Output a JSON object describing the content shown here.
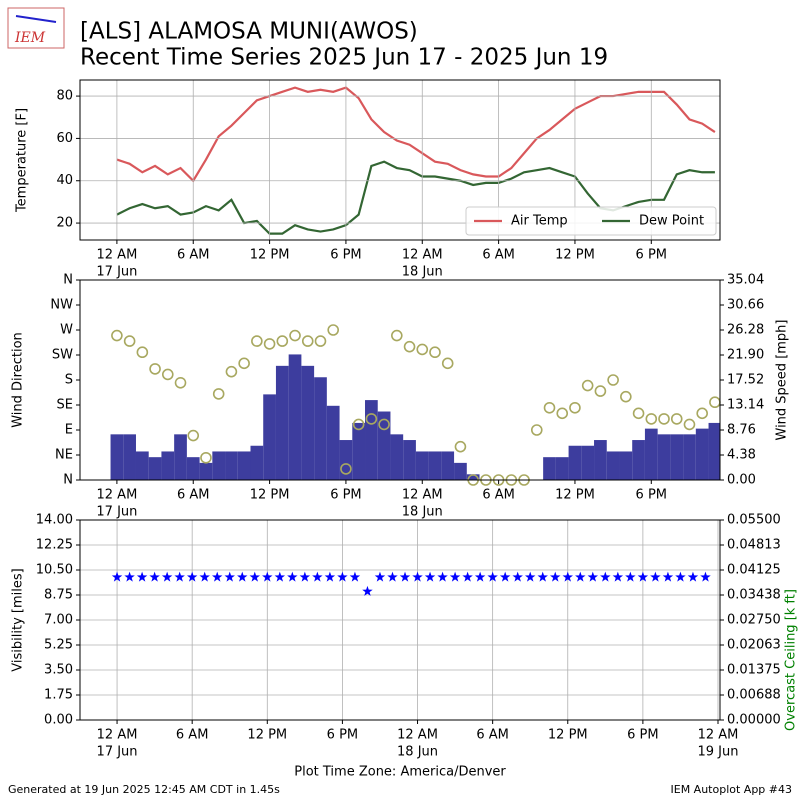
{
  "title": "[ALS] ALAMOSA MUNI(AWOS)",
  "subtitle": "Recent Time Series 2025 Jun 17 - 2025 Jun 19",
  "logo": "IEM",
  "footer_left": "Generated at 19 Jun 2025 12:45 AM CDT in 1.45s",
  "footer_right": "IEM Autoplot App #43",
  "chart_data": [
    {
      "type": "line",
      "ylabel": "Temperature [F]",
      "grid": true,
      "legend": "lower right",
      "xlim": [
        -2.9,
        47.4
      ],
      "ylim": [
        12,
        87.6
      ],
      "yticks": [
        20,
        40,
        60,
        80
      ],
      "xticks": [
        {
          "value": 0,
          "label": "12 AM",
          "date": "17 Jun"
        },
        {
          "value": 6,
          "label": "6 AM"
        },
        {
          "value": 12,
          "label": "12 PM"
        },
        {
          "value": 18,
          "label": "6 PM"
        },
        {
          "value": 24,
          "label": "12 AM",
          "date": "18 Jun"
        },
        {
          "value": 30,
          "label": "6 AM"
        },
        {
          "value": 36,
          "label": "12 PM"
        },
        {
          "value": 42,
          "label": "6 PM"
        }
      ],
      "x": [
        0,
        1,
        2,
        3,
        4,
        5,
        6,
        7,
        8,
        9,
        10,
        11,
        12,
        13,
        14,
        15,
        16,
        17,
        18,
        19,
        20,
        21,
        22,
        23,
        24,
        25,
        26,
        27,
        28,
        29,
        30,
        31,
        32,
        33,
        34,
        35,
        36,
        37,
        38,
        39,
        40,
        41,
        42,
        43,
        44,
        45,
        46,
        47
      ],
      "series": [
        {
          "name": "Air Temp",
          "color": "#d9585b",
          "values": [
            50,
            48,
            44,
            47,
            43,
            46,
            40,
            50,
            61,
            66,
            72,
            78,
            80,
            82,
            84,
            82,
            83,
            82,
            84,
            79,
            69,
            63,
            59,
            57,
            53,
            49,
            48,
            45,
            43,
            42,
            42,
            46,
            53,
            60,
            64,
            69,
            74,
            77,
            80,
            80,
            81,
            82,
            82,
            82,
            76,
            69,
            67,
            63
          ]
        },
        {
          "name": "Dew Point",
          "color": "#336633",
          "values": [
            24,
            27,
            29,
            27,
            28,
            24,
            25,
            28,
            26,
            31,
            20,
            21,
            15,
            15,
            19,
            17,
            16,
            17,
            19,
            24,
            47,
            49,
            46,
            45,
            42,
            42,
            41,
            40,
            38,
            39,
            39,
            41,
            44,
            45,
            46,
            44,
            42,
            34,
            27,
            26,
            28,
            30,
            31,
            31,
            43,
            45,
            44,
            44
          ]
        }
      ]
    },
    {
      "type": "combo",
      "ylabel": "Wind Direction",
      "y2label": "Wind Speed [mph]",
      "grid": false,
      "xlim": [
        -2.9,
        47.4
      ],
      "ylim": [
        0,
        360
      ],
      "y2lim": [
        0,
        35.04
      ],
      "yticks": [
        {
          "value": 0,
          "label": "N"
        },
        {
          "value": 45,
          "label": "NE"
        },
        {
          "value": 90,
          "label": "E"
        },
        {
          "value": 135,
          "label": "SE"
        },
        {
          "value": 180,
          "label": "S"
        },
        {
          "value": 225,
          "label": "SW"
        },
        {
          "value": 270,
          "label": "W"
        },
        {
          "value": 315,
          "label": "NW"
        },
        {
          "value": 360,
          "label": "N"
        }
      ],
      "y2ticks": [
        {
          "value": 0,
          "label": "0.00"
        },
        4.38,
        8.76,
        13.14,
        17.52,
        {
          "value": 21.9,
          "label": "21.90"
        },
        26.28,
        30.66,
        35.04
      ],
      "xticks": [
        {
          "value": 0,
          "label": "12 AM",
          "date": "17 Jun"
        },
        {
          "value": 6,
          "label": "6 AM"
        },
        {
          "value": 12,
          "label": "12 PM"
        },
        {
          "value": 18,
          "label": "6 PM"
        },
        {
          "value": 24,
          "label": "12 AM",
          "date": "18 Jun"
        },
        {
          "value": 30,
          "label": "6 AM"
        },
        {
          "value": 36,
          "label": "12 PM"
        },
        {
          "value": 42,
          "label": "6 PM"
        }
      ],
      "x": [
        0,
        1,
        2,
        3,
        4,
        5,
        6,
        7,
        8,
        9,
        10,
        11,
        12,
        13,
        14,
        15,
        16,
        17,
        18,
        19,
        20,
        21,
        22,
        23,
        24,
        25,
        26,
        27,
        28,
        29,
        30,
        31,
        32,
        33,
        34,
        35,
        36,
        37,
        38,
        39,
        40,
        41,
        42,
        43,
        44,
        45,
        46,
        47
      ],
      "series": [
        {
          "kind": "bar",
          "axis": "y2",
          "color": "#333399",
          "values": [
            8,
            8,
            5,
            4,
            5,
            8,
            4,
            3,
            5,
            5,
            5,
            6,
            15,
            20,
            22,
            20,
            18,
            13,
            7,
            10,
            14,
            12,
            8,
            7,
            5,
            5,
            5,
            3,
            1,
            0,
            0,
            0,
            0,
            0,
            4,
            4,
            6,
            6,
            7,
            5,
            5,
            7,
            9,
            8,
            8,
            8,
            9,
            10
          ]
        },
        {
          "kind": "scatter",
          "color": "#a8a860",
          "values": [
            260,
            250,
            230,
            200,
            190,
            175,
            80,
            40,
            155,
            195,
            210,
            250,
            245,
            250,
            260,
            250,
            250,
            270,
            20,
            100,
            110,
            100,
            260,
            240,
            235,
            230,
            210,
            60,
            0,
            0,
            0,
            0,
            0,
            90,
            130,
            120,
            130,
            170,
            160,
            180,
            150,
            120,
            110,
            110,
            110,
            100,
            120,
            140
          ]
        }
      ]
    },
    {
      "type": "scatter",
      "ylabel": "Visibility [miles]",
      "y2label": "Overcast Ceiling [k ft]",
      "xlabel": "Plot Time Zone: America/Denver",
      "grid": true,
      "xlim": [
        -2.96,
        48.16
      ],
      "ylim": [
        0,
        14
      ],
      "y2lim": [
        0,
        0.055
      ],
      "yticks": [
        {
          "value": 0,
          "label": "0.00"
        },
        1.75,
        {
          "value": 3.5,
          "label": "3.50"
        },
        5.25,
        {
          "value": 7,
          "label": "7.00"
        },
        8.75,
        {
          "value": 10.5,
          "label": "10.50"
        },
        12.25,
        {
          "value": 14,
          "label": "14.00"
        }
      ],
      "y2ticks": [
        {
          "value": 0,
          "label": "0.00000"
        },
        {
          "value": 0.006875,
          "label": "0.00688"
        },
        {
          "value": 0.01375,
          "label": "0.01375"
        },
        {
          "value": 0.020625,
          "label": "0.02063"
        },
        {
          "value": 0.0275,
          "label": "0.02750"
        },
        {
          "value": 0.034375,
          "label": "0.03438"
        },
        {
          "value": 0.04125,
          "label": "0.04125"
        },
        {
          "value": 0.048125,
          "label": "0.04813"
        },
        {
          "value": 0.055,
          "label": "0.05500"
        }
      ],
      "xticks": [
        {
          "value": 0,
          "label": "12 AM",
          "date": "17 Jun"
        },
        {
          "value": 6,
          "label": "6 AM"
        },
        {
          "value": 12,
          "label": "12 PM"
        },
        {
          "value": 18,
          "label": "6 PM"
        },
        {
          "value": 24,
          "label": "12 AM",
          "date": "18 Jun"
        },
        {
          "value": 30,
          "label": "6 AM"
        },
        {
          "value": 36,
          "label": "12 PM"
        },
        {
          "value": 42,
          "label": "6 PM"
        },
        {
          "value": 48,
          "label": "12 AM",
          "date": "19 Jun"
        }
      ],
      "x": [
        0,
        1,
        2,
        3,
        4,
        5,
        6,
        7,
        8,
        9,
        10,
        11,
        12,
        13,
        14,
        15,
        16,
        17,
        18,
        19,
        20,
        21,
        22,
        23,
        24,
        25,
        26,
        27,
        28,
        29,
        30,
        31,
        32,
        33,
        34,
        35,
        36,
        37,
        38,
        39,
        40,
        41,
        42,
        43,
        44,
        45,
        46,
        47
      ],
      "series": [
        {
          "color": "#0000ff",
          "values": [
            10,
            10,
            10,
            10,
            10,
            10,
            10,
            10,
            10,
            10,
            10,
            10,
            10,
            10,
            10,
            10,
            10,
            10,
            10,
            10,
            9,
            10,
            10,
            10,
            10,
            10,
            10,
            10,
            10,
            10,
            10,
            10,
            10,
            10,
            10,
            10,
            10,
            10,
            10,
            10,
            10,
            10,
            10,
            10,
            10,
            10,
            10,
            10
          ]
        }
      ]
    }
  ]
}
